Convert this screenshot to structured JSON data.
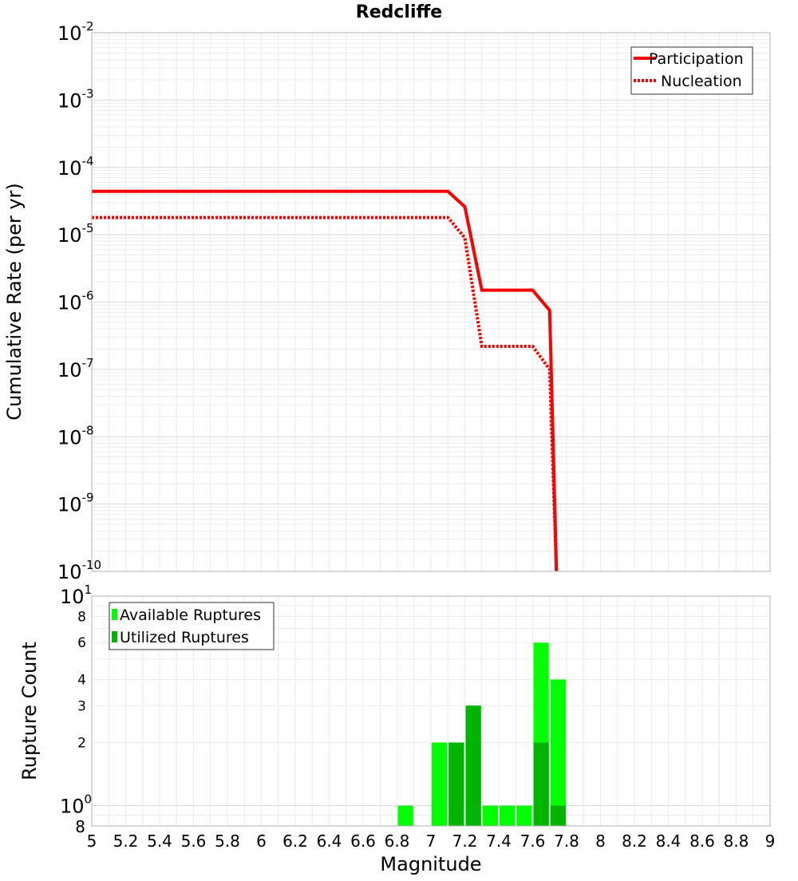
{
  "chart_data": {
    "title": "Redcliffe",
    "xlabel": "Magnitude",
    "xlim": [
      5,
      9
    ],
    "x_ticks": [
      "5",
      "5.2",
      "5.4",
      "5.6",
      "5.8",
      "6",
      "6.2",
      "6.4",
      "6.6",
      "6.8",
      "7",
      "7.2",
      "7.4",
      "7.6",
      "7.8",
      "8",
      "8.2",
      "8.4",
      "8.6",
      "8.8",
      "9"
    ],
    "charts": [
      {
        "type": "line",
        "ylabel": "Cumulative Rate (per yr)",
        "yscale": "log",
        "ylim": [
          1e-10,
          0.01
        ],
        "y_ticks": [
          {
            "base": "10",
            "exp": "-10"
          },
          {
            "base": "10",
            "exp": "-9"
          },
          {
            "base": "10",
            "exp": "-8"
          },
          {
            "base": "10",
            "exp": "-7"
          },
          {
            "base": "10",
            "exp": "-6"
          },
          {
            "base": "10",
            "exp": "-5"
          },
          {
            "base": "10",
            "exp": "-4"
          },
          {
            "base": "10",
            "exp": "-3"
          },
          {
            "base": "10",
            "exp": "-2"
          }
        ],
        "grid": true,
        "legend_position": "top-right",
        "series": [
          {
            "name": "Participation",
            "color": "#ff0000",
            "style": "solid",
            "x": [
              5.0,
              7.1,
              7.2,
              7.3,
              7.6,
              7.7,
              7.74
            ],
            "y": [
              4.4e-05,
              4.4e-05,
              2.6e-05,
              1.5e-06,
              1.5e-06,
              7.5e-07,
              1e-10
            ]
          },
          {
            "name": "Nucleation",
            "color": "#ff0000",
            "style": "dotted",
            "x": [
              5.0,
              7.1,
              7.2,
              7.3,
              7.6,
              7.7,
              7.74
            ],
            "y": [
              1.8e-05,
              1.8e-05,
              9e-06,
              2.2e-07,
              2.2e-07,
              1e-07,
              1e-10
            ]
          }
        ]
      },
      {
        "type": "bar",
        "ylabel": "Rupture Count",
        "yscale": "log",
        "ylim": [
          0.8,
          10
        ],
        "y_ticks_major": [
          {
            "base": "10",
            "exp": "0",
            "value": 1
          },
          {
            "base": "10",
            "exp": "1",
            "value": 10
          }
        ],
        "y_ticks_minor": [
          "2",
          "3",
          "4",
          "6",
          "8"
        ],
        "y_tick_bottom": "8",
        "grid": true,
        "legend_position": "top-left",
        "bin_width": 0.1,
        "series": [
          {
            "name": "Available Ruptures",
            "color": "#00ff00",
            "x": [
              6.85,
              7.05,
              7.15,
              7.25,
              7.35,
              7.45,
              7.55,
              7.65,
              7.75
            ],
            "values": [
              1,
              2,
              2,
              3,
              1,
              1,
              1,
              6,
              4
            ]
          },
          {
            "name": "Utilized Ruptures",
            "color": "#00b400",
            "x": [
              7.15,
              7.25,
              7.65,
              7.75
            ],
            "values": [
              2,
              3,
              2,
              1
            ]
          }
        ]
      }
    ]
  }
}
